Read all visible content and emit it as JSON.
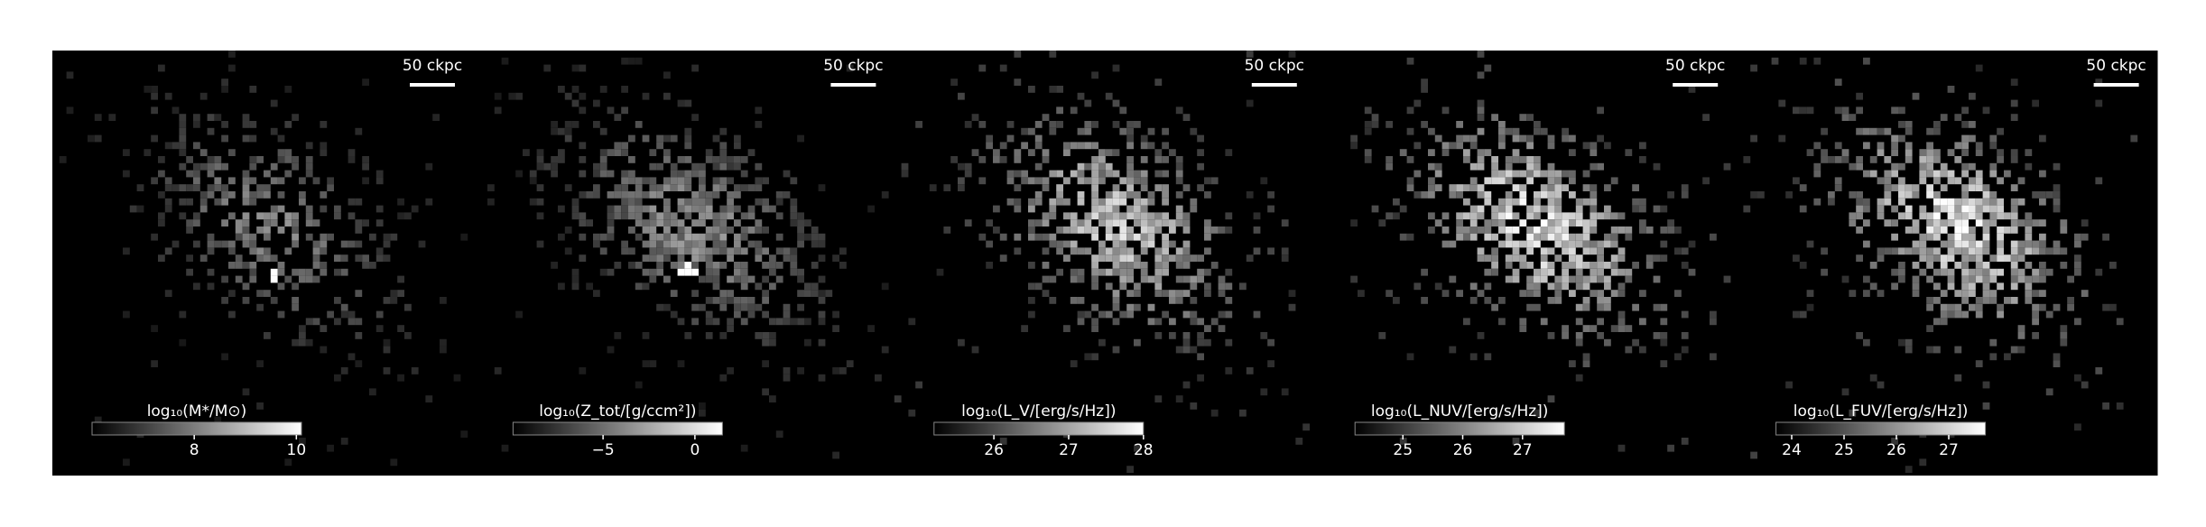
{
  "panels": [
    {
      "scale_bar": "50 ckpc",
      "colorbar": {
        "label": "log₁₀(M*/M⊙)",
        "clim": [
          6,
          10.1
        ],
        "ticks": [
          8,
          10
        ]
      }
    },
    {
      "scale_bar": "50 ckpc",
      "colorbar": {
        "label": "log₁₀(Z_tot/[g/ccm²])",
        "clim": [
          -9.9,
          1.5
        ],
        "ticks": [
          {
            "value": -5,
            "label": "−5"
          },
          0
        ]
      }
    },
    {
      "scale_bar": "50 ckpc",
      "colorbar": {
        "label": "log₁₀(L_V/[erg/s/Hz])",
        "clim": [
          25.2,
          28
        ],
        "ticks": [
          26,
          27,
          28
        ]
      }
    },
    {
      "scale_bar": "50 ckpc",
      "colorbar": {
        "label": "log₁₀(L_NUV/[erg/s/Hz])",
        "clim": [
          24.2,
          27.7
        ],
        "ticks": [
          25,
          26,
          27
        ]
      }
    },
    {
      "scale_bar": "50 ckpc",
      "colorbar": {
        "label": "log₁₀(L_FUV/[erg/s/Hz])",
        "clim": [
          23.7,
          27.7
        ],
        "ticks": [
          24,
          25,
          26,
          27
        ]
      }
    }
  ]
}
